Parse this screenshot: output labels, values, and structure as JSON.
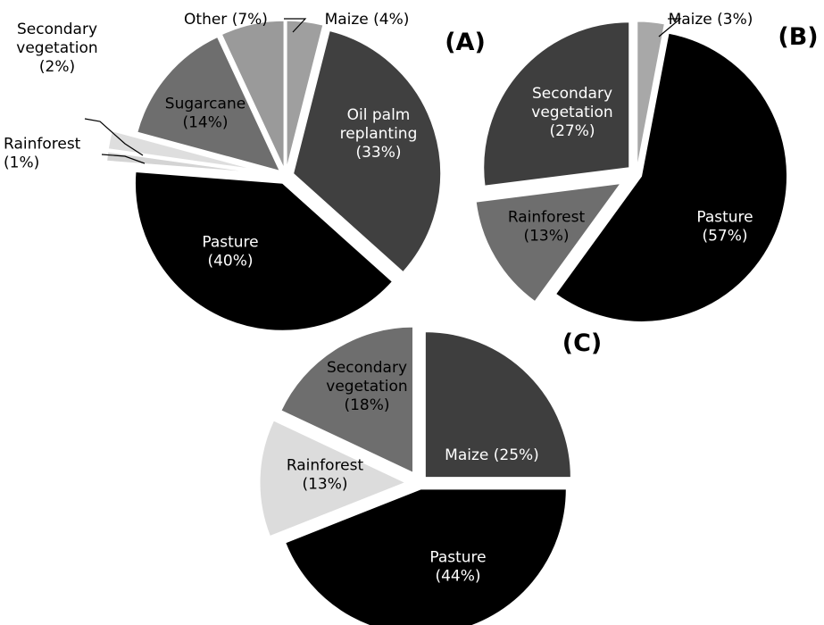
{
  "chart_data": [
    {
      "type": "pie",
      "panel": "(A)",
      "slices": [
        {
          "label": "Maize (4%)",
          "lines": [
            "Maize (4%)"
          ],
          "value": 4,
          "color": "#9f9f9f",
          "text_color": "#000000"
        },
        {
          "label": "Oil palm replanting (33%)",
          "lines": [
            "Oil palm",
            "replanting",
            "(33%)"
          ],
          "value": 33,
          "color": "#404040",
          "text_color": "#ffffff"
        },
        {
          "label": "Pasture (40%)",
          "lines": [
            "Pasture",
            "(40%)"
          ],
          "value": 40,
          "color": "#000000",
          "text_color": "#ffffff"
        },
        {
          "label": "Rainforest (1%)",
          "lines": [
            "Rainforest",
            "(1%)"
          ],
          "value": 1,
          "color": "#d4d4d4",
          "text_color": "#000000"
        },
        {
          "label": "Secondary vegetation (2%)",
          "lines": [
            "Secondary",
            "vegetation",
            "(2%)"
          ],
          "value": 2,
          "color": "#dedede",
          "text_color": "#000000"
        },
        {
          "label": "Sugarcane (14%)",
          "lines": [
            "Sugarcane",
            "(14%)"
          ],
          "value": 14,
          "color": "#6e6e6e",
          "text_color": "#000000"
        },
        {
          "label": "Other (7%)",
          "lines": [
            "Other (7%)"
          ],
          "value": 7,
          "color": "#9a9a9a",
          "text_color": "#000000"
        }
      ]
    },
    {
      "type": "pie",
      "panel": "(B)",
      "slices": [
        {
          "label": "Maize (3%)",
          "lines": [
            "Maize (3%)"
          ],
          "value": 3,
          "color": "#a8a8a8",
          "text_color": "#000000"
        },
        {
          "label": "Pasture (57%)",
          "lines": [
            "Pasture",
            "(57%)"
          ],
          "value": 57,
          "color": "#000000",
          "text_color": "#ffffff"
        },
        {
          "label": "Rainforest (13%)",
          "lines": [
            "Rainforest",
            "(13%)"
          ],
          "value": 13,
          "color": "#6e6e6e",
          "text_color": "#000000"
        },
        {
          "label": "Secondary vegetation (27%)",
          "lines": [
            "Secondary",
            "vegetation",
            "(27%)"
          ],
          "value": 27,
          "color": "#3e3e3e",
          "text_color": "#ffffff"
        }
      ]
    },
    {
      "type": "pie",
      "panel": "(C)",
      "slices": [
        {
          "label": "Maize (25%)",
          "lines": [
            "Maize (25%)"
          ],
          "value": 25,
          "color": "#3e3e3e",
          "text_color": "#ffffff"
        },
        {
          "label": "Pasture (44%)",
          "lines": [
            "Pasture",
            "(44%)"
          ],
          "value": 44,
          "color": "#000000",
          "text_color": "#ffffff"
        },
        {
          "label": "Rainforest (13%)",
          "lines": [
            "Rainforest",
            "(13%)"
          ],
          "value": 13,
          "color": "#dcdcdc",
          "text_color": "#000000"
        },
        {
          "label": "Secondary vegetation (18%)",
          "lines": [
            "Secondary",
            "vegetation",
            "(18%)"
          ],
          "value": 18,
          "color": "#6e6e6e",
          "text_color": "#000000"
        }
      ]
    }
  ]
}
